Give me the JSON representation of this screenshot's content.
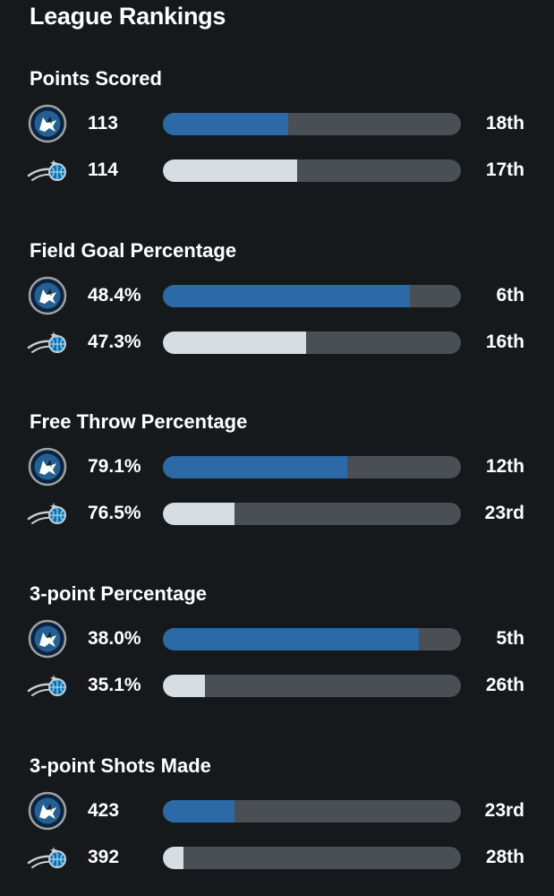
{
  "header": {
    "title": "League Rankings"
  },
  "teams": {
    "a": {
      "logo_icon": "timberwolves-logo-icon",
      "bar_color": "#2b6aa6"
    },
    "b": {
      "logo_icon": "magic-logo-icon",
      "bar_color": "#d6dde3"
    }
  },
  "colors": {
    "background": "#16191c",
    "track": "#4a4f55"
  },
  "rankings": [
    {
      "title": "Points Scored",
      "rows": [
        {
          "team": "a",
          "value": "113",
          "rank": "18th",
          "fill": 0.42
        },
        {
          "team": "b",
          "value": "114",
          "rank": "17th",
          "fill": 0.45
        }
      ]
    },
    {
      "title": "Field Goal Percentage",
      "rows": [
        {
          "team": "a",
          "value": "48.4%",
          "rank": "6th",
          "fill": 0.83
        },
        {
          "team": "b",
          "value": "47.3%",
          "rank": "16th",
          "fill": 0.48
        }
      ]
    },
    {
      "title": "Free Throw Percentage",
      "rows": [
        {
          "team": "a",
          "value": "79.1%",
          "rank": "12th",
          "fill": 0.62
        },
        {
          "team": "b",
          "value": "76.5%",
          "rank": "23rd",
          "fill": 0.24
        }
      ]
    },
    {
      "title": "3-point Percentage",
      "rows": [
        {
          "team": "a",
          "value": "38.0%",
          "rank": "5th",
          "fill": 0.86
        },
        {
          "team": "b",
          "value": "35.1%",
          "rank": "26th",
          "fill": 0.14
        }
      ]
    },
    {
      "title": "3-point Shots Made",
      "rows": [
        {
          "team": "a",
          "value": "423",
          "rank": "23rd",
          "fill": 0.24
        },
        {
          "team": "b",
          "value": "392",
          "rank": "28th",
          "fill": 0.07
        }
      ]
    }
  ]
}
